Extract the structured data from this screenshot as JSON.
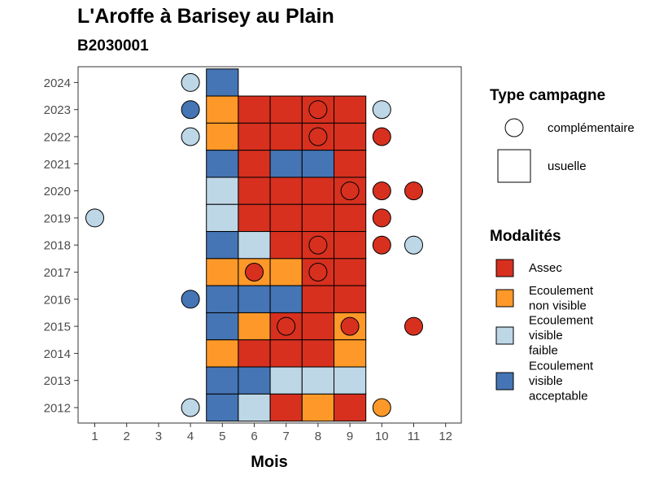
{
  "title": "L'Aroffe à Barisey au Plain",
  "subtitle": "B2030001",
  "chart_data": {
    "type": "heatmap",
    "xlabel": "Mois",
    "ylabel": "",
    "x_ticks": [
      "1",
      "2",
      "3",
      "4",
      "5",
      "6",
      "7",
      "8",
      "9",
      "10",
      "11",
      "12"
    ],
    "y_ticks": [
      "2012",
      "2013",
      "2014",
      "2015",
      "2016",
      "2017",
      "2018",
      "2019",
      "2020",
      "2021",
      "2022",
      "2023",
      "2024"
    ],
    "xlim": [
      1,
      12
    ],
    "ylim": [
      2012,
      2024
    ],
    "legend_shape": {
      "title": "Type campagne",
      "items": [
        {
          "label": "complémentaire",
          "shape": "circle"
        },
        {
          "label": "usuelle",
          "shape": "square"
        }
      ]
    },
    "legend_fill": {
      "title": "Modalités",
      "items": [
        {
          "key": "assec",
          "lines": [
            "Assec"
          ],
          "color": "#d7301f"
        },
        {
          "key": "nonvis",
          "lines": [
            "Ecoulement",
            "non visible"
          ],
          "color": "#fe9929"
        },
        {
          "key": "faible",
          "lines": [
            "Ecoulement",
            "visible",
            "faible"
          ],
          "color": "#bdd7e7"
        },
        {
          "key": "accept",
          "lines": [
            "Ecoulement",
            "visible",
            "acceptable"
          ],
          "color": "#4575b4"
        }
      ]
    },
    "usuelle": [
      {
        "year": 2024,
        "months": {
          "5": "accept"
        }
      },
      {
        "year": 2023,
        "months": {
          "5": "nonvis",
          "6": "assec",
          "7": "assec",
          "8": "assec",
          "9": "assec"
        }
      },
      {
        "year": 2022,
        "months": {
          "5": "nonvis",
          "6": "assec",
          "7": "assec",
          "8": "assec",
          "9": "assec"
        }
      },
      {
        "year": 2021,
        "months": {
          "5": "accept",
          "6": "assec",
          "7": "accept",
          "8": "accept",
          "9": "assec"
        }
      },
      {
        "year": 2020,
        "months": {
          "5": "faible",
          "6": "assec",
          "7": "assec",
          "8": "assec",
          "9": "assec"
        }
      },
      {
        "year": 2019,
        "months": {
          "5": "faible",
          "6": "assec",
          "7": "assec",
          "8": "assec",
          "9": "assec"
        }
      },
      {
        "year": 2018,
        "months": {
          "5": "accept",
          "6": "faible",
          "7": "assec",
          "8": "assec",
          "9": "assec"
        }
      },
      {
        "year": 2017,
        "months": {
          "5": "nonvis",
          "6": "nonvis",
          "7": "nonvis",
          "8": "assec",
          "9": "assec"
        }
      },
      {
        "year": 2016,
        "months": {
          "5": "accept",
          "6": "accept",
          "7": "accept",
          "8": "assec",
          "9": "assec"
        }
      },
      {
        "year": 2015,
        "months": {
          "5": "accept",
          "6": "nonvis",
          "7": "assec",
          "8": "assec",
          "9": "nonvis"
        }
      },
      {
        "year": 2014,
        "months": {
          "5": "nonvis",
          "6": "assec",
          "7": "assec",
          "8": "assec",
          "9": "nonvis"
        }
      },
      {
        "year": 2013,
        "months": {
          "5": "accept",
          "6": "accept",
          "7": "faible",
          "8": "faible",
          "9": "faible"
        }
      },
      {
        "year": 2012,
        "months": {
          "5": "accept",
          "6": "faible",
          "7": "assec",
          "8": "nonvis",
          "9": "assec"
        }
      }
    ],
    "complementaire": [
      {
        "year": 2024,
        "month": 4,
        "mod": "faible"
      },
      {
        "year": 2023,
        "month": 4,
        "mod": "accept"
      },
      {
        "year": 2023,
        "month": 8,
        "mod": "assec"
      },
      {
        "year": 2023,
        "month": 10,
        "mod": "faible"
      },
      {
        "year": 2022,
        "month": 4,
        "mod": "faible"
      },
      {
        "year": 2022,
        "month": 8,
        "mod": "assec"
      },
      {
        "year": 2022,
        "month": 10,
        "mod": "assec"
      },
      {
        "year": 2020,
        "month": 9,
        "mod": "assec"
      },
      {
        "year": 2020,
        "month": 10,
        "mod": "assec"
      },
      {
        "year": 2020,
        "month": 11,
        "mod": "assec"
      },
      {
        "year": 2019,
        "month": 1,
        "mod": "faible"
      },
      {
        "year": 2019,
        "month": 10,
        "mod": "assec"
      },
      {
        "year": 2018,
        "month": 8,
        "mod": "assec"
      },
      {
        "year": 2018,
        "month": 10,
        "mod": "assec"
      },
      {
        "year": 2018,
        "month": 11,
        "mod": "faible"
      },
      {
        "year": 2017,
        "month": 6,
        "mod": "assec"
      },
      {
        "year": 2017,
        "month": 8,
        "mod": "assec"
      },
      {
        "year": 2016,
        "month": 4,
        "mod": "accept"
      },
      {
        "year": 2015,
        "month": 7,
        "mod": "assec"
      },
      {
        "year": 2015,
        "month": 9,
        "mod": "assec"
      },
      {
        "year": 2015,
        "month": 11,
        "mod": "assec"
      },
      {
        "year": 2012,
        "month": 4,
        "mod": "faible"
      },
      {
        "year": 2012,
        "month": 10,
        "mod": "nonvis"
      }
    ]
  }
}
